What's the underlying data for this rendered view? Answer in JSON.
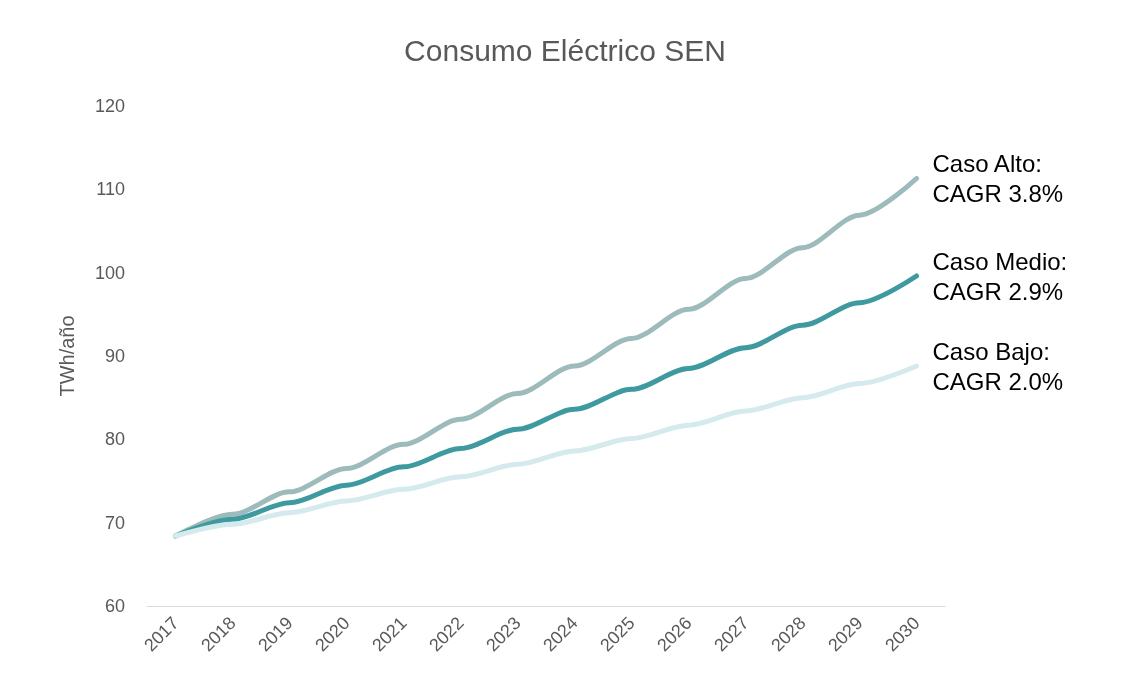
{
  "chart_data": {
    "type": "line",
    "title": "Consumo Eléctrico SEN",
    "ylabel": "TWh/año",
    "categories": [
      "2017",
      "2018",
      "2019",
      "2020",
      "2021",
      "2022",
      "2023",
      "2024",
      "2025",
      "2026",
      "2027",
      "2028",
      "2029",
      "2030"
    ],
    "series": [
      {
        "name": "Caso Alto: CAGR 3.8%",
        "color": "#9dbbbb",
        "values": [
          68.4,
          71.0,
          73.7,
          76.5,
          79.4,
          82.4,
          85.5,
          88.8,
          92.1,
          95.6,
          99.3,
          103.0,
          106.9,
          111.3
        ]
      },
      {
        "name": "Caso Medio: CAGR 2.9%",
        "color": "#3f9aa0",
        "values": [
          68.4,
          70.4,
          72.4,
          74.5,
          76.7,
          78.9,
          81.2,
          83.6,
          86.0,
          88.5,
          91.0,
          93.7,
          96.4,
          99.6
        ]
      },
      {
        "name": "Caso Bajo: CAGR 2.0%",
        "color": "#d4eaed",
        "values": [
          68.4,
          69.8,
          71.2,
          72.6,
          74.0,
          75.5,
          77.0,
          78.6,
          80.1,
          81.7,
          83.4,
          85.0,
          86.7,
          88.8
        ]
      }
    ],
    "ylim": [
      60,
      120
    ],
    "yticks": [
      60,
      70,
      80,
      90,
      100,
      110,
      120
    ],
    "grid": false,
    "legend": false,
    "marker": "none",
    "line_style": "solid"
  }
}
